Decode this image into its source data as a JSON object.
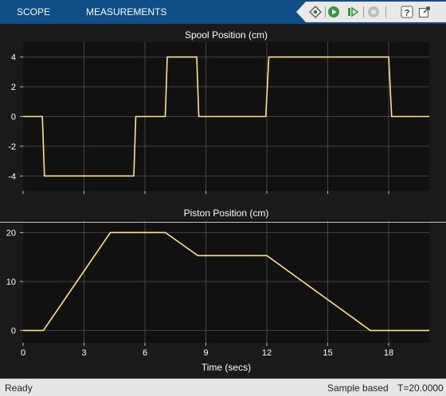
{
  "toolstrip": {
    "tabs": [
      {
        "label": "SCOPE"
      },
      {
        "label": "MEASUREMENTS"
      }
    ],
    "icons": [
      "highlight-blocks-icon",
      "run-icon",
      "step-forward-icon",
      "stop-icon",
      "help-icon",
      "undock-icon"
    ]
  },
  "status": {
    "state": "Ready",
    "mode": "Sample based",
    "time": "T=20.0000"
  },
  "colors": {
    "background": "#1a1a1a",
    "axes_background": "#111111",
    "grid": "#444444",
    "trace": "#ffe680",
    "toolstrip": "#0f4e86"
  },
  "chart_data": [
    {
      "type": "line",
      "title": "Spool Position (cm)",
      "xlabel": "",
      "ylabel": "",
      "xlim": [
        0,
        20
      ],
      "ylim": [
        -5,
        5
      ],
      "xticks": [
        0,
        3,
        6,
        9,
        12,
        15,
        18
      ],
      "yticks": [
        -4,
        -2,
        0,
        2,
        4
      ],
      "ytick_labels": [
        "-4",
        "-2",
        "0",
        "2",
        "4"
      ],
      "grid": true,
      "series": [
        {
          "x": [
            0,
            0.95,
            1.05,
            5.45,
            5.55,
            7.0,
            7.1,
            8.55,
            8.65,
            11.95,
            12.1,
            18.0,
            18.15,
            20
          ],
          "y": [
            0,
            0,
            -4,
            -4,
            0,
            0,
            4,
            4,
            0,
            0,
            4,
            4,
            0,
            0
          ]
        }
      ]
    },
    {
      "type": "line",
      "title": "Piston Position (cm)",
      "xlabel": "Time (secs)",
      "ylabel": "",
      "xlim": [
        0,
        20
      ],
      "ylim": [
        -2.5,
        22.5
      ],
      "xticks": [
        0,
        3,
        6,
        9,
        12,
        15,
        18
      ],
      "xtick_labels": [
        "0",
        "3",
        "6",
        "9",
        "12",
        "15",
        "18"
      ],
      "yticks": [
        0,
        10,
        20
      ],
      "ytick_labels": [
        "0",
        "10",
        "20"
      ],
      "grid": true,
      "series": [
        {
          "x": [
            0,
            1.0,
            4.3,
            7.0,
            8.6,
            12.0,
            17.1,
            20
          ],
          "y": [
            0,
            0,
            20,
            20,
            15.3,
            15.3,
            0,
            0
          ]
        }
      ]
    }
  ]
}
